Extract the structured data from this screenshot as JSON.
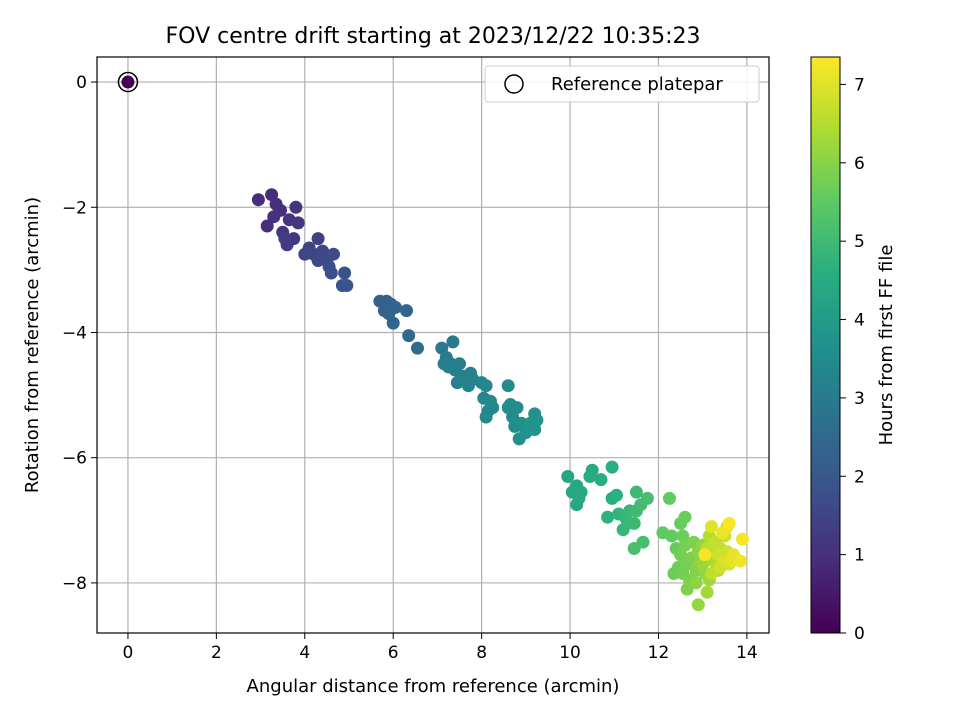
{
  "chart_data": {
    "type": "scatter",
    "title": "FOV centre drift starting at 2023/12/22 10:35:23",
    "xlabel": "Angular distance from reference (arcmin)",
    "ylabel": "Rotation from reference (arcmin)",
    "xlim": [
      -0.7,
      14.5
    ],
    "ylim": [
      -8.8,
      0.4
    ],
    "x_ticks": [
      0,
      2,
      4,
      6,
      8,
      10,
      12,
      14
    ],
    "y_ticks": [
      0,
      -2,
      -4,
      -6,
      -8
    ],
    "grid": true,
    "legend": {
      "position": "top-right",
      "entries": [
        "Reference platepar"
      ]
    },
    "colorbar": {
      "label": "Hours from first FF file",
      "range": [
        0,
        7.35
      ],
      "ticks": [
        0,
        1,
        2,
        3,
        4,
        5,
        6,
        7
      ],
      "colormap": "viridis"
    },
    "reference_point": {
      "x": 0,
      "y": 0,
      "hours": 0
    },
    "points": [
      [
        2.95,
        -1.88,
        0.9
      ],
      [
        3.25,
        -1.8,
        0.9
      ],
      [
        3.15,
        -2.3,
        0.95
      ],
      [
        3.35,
        -1.95,
        1.0
      ],
      [
        3.45,
        -2.05,
        1.0
      ],
      [
        3.3,
        -2.15,
        1.05
      ],
      [
        3.8,
        -2.0,
        1.1
      ],
      [
        3.65,
        -2.2,
        1.1
      ],
      [
        3.5,
        -2.4,
        1.15
      ],
      [
        3.85,
        -2.25,
        1.2
      ],
      [
        3.75,
        -2.5,
        1.2
      ],
      [
        3.6,
        -2.6,
        1.25
      ],
      [
        3.55,
        -2.5,
        1.3
      ],
      [
        4.3,
        -2.5,
        1.45
      ],
      [
        4.1,
        -2.65,
        1.5
      ],
      [
        4.2,
        -2.75,
        1.5
      ],
      [
        4.0,
        -2.75,
        1.55
      ],
      [
        4.4,
        -2.7,
        1.6
      ],
      [
        4.5,
        -2.85,
        1.65
      ],
      [
        4.3,
        -2.85,
        1.65
      ],
      [
        4.65,
        -2.75,
        1.7
      ],
      [
        4.55,
        -2.95,
        1.75
      ],
      [
        4.6,
        -3.05,
        1.8
      ],
      [
        4.9,
        -3.05,
        1.85
      ],
      [
        4.85,
        -3.25,
        1.9
      ],
      [
        4.95,
        -3.25,
        1.9
      ],
      [
        5.7,
        -3.5,
        2.2
      ],
      [
        5.85,
        -3.5,
        2.25
      ],
      [
        5.8,
        -3.65,
        2.25
      ],
      [
        5.95,
        -3.55,
        2.3
      ],
      [
        5.9,
        -3.7,
        2.35
      ],
      [
        6.05,
        -3.6,
        2.35
      ],
      [
        6.0,
        -3.85,
        2.4
      ],
      [
        6.3,
        -3.65,
        2.45
      ],
      [
        6.35,
        -4.05,
        2.55
      ],
      [
        6.55,
        -4.25,
        2.6
      ],
      [
        7.1,
        -4.25,
        2.95
      ],
      [
        7.35,
        -4.15,
        3.0
      ],
      [
        7.2,
        -4.4,
        3.0
      ],
      [
        7.3,
        -4.5,
        3.05
      ],
      [
        7.15,
        -4.5,
        3.05
      ],
      [
        7.5,
        -4.5,
        3.1
      ],
      [
        7.4,
        -4.6,
        3.1
      ],
      [
        7.25,
        -4.55,
        3.15
      ],
      [
        7.45,
        -4.8,
        3.15
      ],
      [
        7.6,
        -4.7,
        3.2
      ],
      [
        7.75,
        -4.65,
        3.2
      ],
      [
        7.7,
        -4.85,
        3.25
      ],
      [
        7.8,
        -4.75,
        3.25
      ],
      [
        8.0,
        -4.8,
        3.3
      ],
      [
        8.1,
        -4.85,
        3.35
      ],
      [
        8.05,
        -5.05,
        3.35
      ],
      [
        8.2,
        -5.1,
        3.4
      ],
      [
        8.15,
        -5.25,
        3.4
      ],
      [
        8.25,
        -5.2,
        3.45
      ],
      [
        8.1,
        -5.35,
        3.45
      ],
      [
        8.6,
        -4.85,
        3.5
      ],
      [
        8.65,
        -5.15,
        3.5
      ],
      [
        8.7,
        -5.35,
        3.55
      ],
      [
        8.6,
        -5.2,
        3.55
      ],
      [
        8.8,
        -5.2,
        3.6
      ],
      [
        8.75,
        -5.5,
        3.6
      ],
      [
        8.9,
        -5.45,
        3.65
      ],
      [
        8.85,
        -5.7,
        3.65
      ],
      [
        9.0,
        -5.6,
        3.7
      ],
      [
        9.05,
        -5.55,
        3.7
      ],
      [
        9.2,
        -5.3,
        3.75
      ],
      [
        9.25,
        -5.4,
        3.75
      ],
      [
        9.2,
        -5.55,
        3.8
      ],
      [
        9.1,
        -5.45,
        3.8
      ],
      [
        9.95,
        -6.3,
        4.3
      ],
      [
        10.05,
        -6.55,
        4.35
      ],
      [
        10.15,
        -6.45,
        4.35
      ],
      [
        10.2,
        -6.65,
        4.4
      ],
      [
        10.15,
        -6.75,
        4.4
      ],
      [
        10.25,
        -6.55,
        4.45
      ],
      [
        10.5,
        -6.2,
        4.5
      ],
      [
        10.45,
        -6.3,
        4.5
      ],
      [
        10.7,
        -6.35,
        4.55
      ],
      [
        10.95,
        -6.15,
        4.6
      ],
      [
        10.95,
        -6.65,
        4.6
      ],
      [
        11.05,
        -6.6,
        4.65
      ],
      [
        10.85,
        -6.95,
        4.7
      ],
      [
        11.1,
        -6.9,
        4.75
      ],
      [
        11.25,
        -6.95,
        4.8
      ],
      [
        11.2,
        -7.15,
        4.85
      ],
      [
        11.35,
        -6.85,
        4.85
      ],
      [
        11.3,
        -7.05,
        4.9
      ],
      [
        11.45,
        -7.05,
        4.95
      ],
      [
        11.5,
        -6.55,
        5.0
      ],
      [
        11.5,
        -6.85,
        5.0
      ],
      [
        11.6,
        -6.75,
        5.05
      ],
      [
        11.75,
        -6.65,
        5.1
      ],
      [
        11.65,
        -7.35,
        5.1
      ],
      [
        11.45,
        -7.45,
        5.15
      ],
      [
        12.1,
        -7.2,
        5.5
      ],
      [
        12.25,
        -6.65,
        5.55
      ],
      [
        12.3,
        -7.25,
        5.55
      ],
      [
        12.4,
        -7.45,
        5.6
      ],
      [
        12.5,
        -7.05,
        5.6
      ],
      [
        12.55,
        -7.25,
        5.65
      ],
      [
        12.6,
        -6.95,
        5.65
      ],
      [
        12.35,
        -7.85,
        5.7
      ],
      [
        12.45,
        -7.75,
        5.7
      ],
      [
        12.5,
        -7.55,
        5.75
      ],
      [
        12.55,
        -7.85,
        5.75
      ],
      [
        12.6,
        -7.4,
        5.8
      ],
      [
        12.65,
        -7.7,
        5.8
      ],
      [
        12.7,
        -7.95,
        5.85
      ],
      [
        12.75,
        -7.6,
        5.85
      ],
      [
        12.65,
        -8.1,
        5.9
      ],
      [
        12.8,
        -7.35,
        5.9
      ],
      [
        12.85,
        -7.8,
        5.95
      ],
      [
        12.9,
        -7.5,
        6.0
      ],
      [
        12.95,
        -7.65,
        6.0
      ],
      [
        12.85,
        -8.0,
        6.05
      ],
      [
        13.0,
        -7.4,
        6.1
      ],
      [
        13.05,
        -7.85,
        6.1
      ],
      [
        12.9,
        -8.35,
        6.15
      ],
      [
        13.1,
        -7.55,
        6.2
      ],
      [
        13.0,
        -7.7,
        6.2
      ],
      [
        13.15,
        -7.95,
        6.25
      ],
      [
        13.1,
        -8.15,
        6.3
      ],
      [
        13.2,
        -7.35,
        6.4
      ],
      [
        13.25,
        -7.65,
        6.45
      ],
      [
        13.3,
        -7.5,
        6.5
      ],
      [
        13.15,
        -7.25,
        6.5
      ],
      [
        13.35,
        -7.8,
        6.55
      ],
      [
        13.1,
        -7.45,
        6.6
      ],
      [
        13.4,
        -7.45,
        6.6
      ],
      [
        13.2,
        -7.85,
        6.65
      ],
      [
        13.45,
        -7.6,
        6.7
      ],
      [
        13.3,
        -7.35,
        6.7
      ],
      [
        13.5,
        -7.25,
        6.75
      ],
      [
        13.35,
        -7.55,
        6.8
      ],
      [
        13.55,
        -7.5,
        6.8
      ],
      [
        13.4,
        -7.75,
        6.85
      ],
      [
        13.6,
        -7.7,
        6.9
      ],
      [
        13.5,
        -7.65,
        6.95
      ],
      [
        13.2,
        -7.1,
        7.0
      ],
      [
        13.55,
        -7.1,
        7.0
      ],
      [
        13.65,
        -7.65,
        7.05
      ],
      [
        13.7,
        -7.55,
        7.1
      ],
      [
        13.45,
        -7.2,
        7.15
      ],
      [
        13.85,
        -7.65,
        7.2
      ],
      [
        13.9,
        -7.3,
        7.25
      ],
      [
        13.05,
        -7.55,
        7.25
      ],
      [
        13.6,
        -7.05,
        7.3
      ]
    ]
  }
}
